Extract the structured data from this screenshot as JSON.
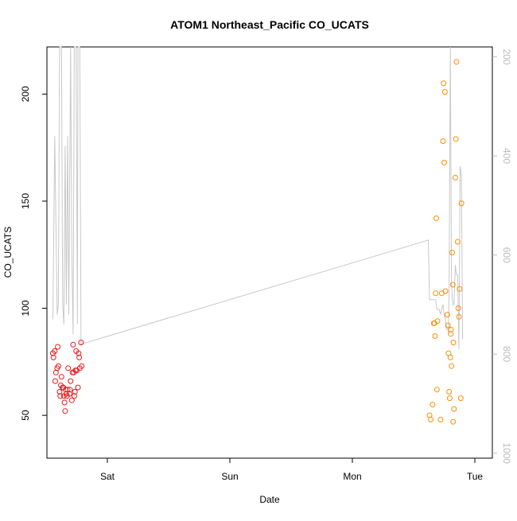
{
  "chart_data": {
    "type": "scatter",
    "title": "ATOM1 Northeast_Pacific CO_UCATS",
    "xlabel": "Date",
    "ylabel": "CO_UCATS",
    "ylim": [
      30,
      222
    ],
    "y2lim": [
      1010,
      180
    ],
    "x_ticks": [
      {
        "label": "Sat",
        "value": 1.0
      },
      {
        "label": "Sun",
        "value": 2.0
      },
      {
        "label": "Mon",
        "value": 3.0
      },
      {
        "label": "Tue",
        "value": 4.0
      }
    ],
    "y_ticks": [
      50,
      100,
      150,
      200
    ],
    "y2_ticks": [
      200,
      400,
      600,
      800,
      1000
    ],
    "grid": false,
    "colors": {
      "series_red": "#e41a1c",
      "series_orange": "#ff8c00",
      "altitude": "#c8c8c8",
      "axis": "#000000",
      "right_axis": "#bbbbbb"
    },
    "series": [
      {
        "values": [
          [
            0.555,
            79
          ],
          [
            0.56,
            77
          ],
          [
            0.57,
            80
          ],
          [
            0.575,
            66
          ],
          [
            0.58,
            70
          ],
          [
            0.59,
            72
          ],
          [
            0.595,
            82
          ],
          [
            0.6,
            73
          ],
          [
            0.61,
            61
          ],
          [
            0.615,
            59
          ],
          [
            0.62,
            64
          ],
          [
            0.625,
            68
          ],
          [
            0.635,
            63
          ],
          [
            0.64,
            63
          ],
          [
            0.645,
            59
          ],
          [
            0.65,
            56
          ],
          [
            0.655,
            52
          ],
          [
            0.66,
            62
          ],
          [
            0.665,
            60
          ],
          [
            0.67,
            59
          ],
          [
            0.675,
            62
          ],
          [
            0.68,
            72
          ],
          [
            0.69,
            60
          ],
          [
            0.695,
            62
          ],
          [
            0.7,
            66
          ],
          [
            0.71,
            57
          ],
          [
            0.715,
            70
          ],
          [
            0.72,
            83
          ],
          [
            0.725,
            70
          ],
          [
            0.73,
            59
          ],
          [
            0.735,
            61
          ],
          [
            0.74,
            71
          ],
          [
            0.745,
            80
          ],
          [
            0.75,
            71
          ],
          [
            0.76,
            63
          ],
          [
            0.765,
            79
          ],
          [
            0.77,
            77
          ],
          [
            0.775,
            72
          ],
          [
            0.785,
            84
          ],
          [
            0.79,
            73
          ]
        ]
      },
      {
        "values": [
          [
            3.63,
            50
          ],
          [
            3.64,
            48
          ],
          [
            3.655,
            55
          ],
          [
            3.665,
            93
          ],
          [
            3.67,
            93
          ],
          [
            3.675,
            87
          ],
          [
            3.68,
            107
          ],
          [
            3.685,
            142
          ],
          [
            3.69,
            62
          ],
          [
            3.695,
            94
          ],
          [
            3.72,
            48
          ],
          [
            3.73,
            107
          ],
          [
            3.74,
            178
          ],
          [
            3.745,
            205
          ],
          [
            3.75,
            168
          ],
          [
            3.755,
            201
          ],
          [
            3.76,
            108
          ],
          [
            3.775,
            97
          ],
          [
            3.78,
            92
          ],
          [
            3.785,
            79
          ],
          [
            3.79,
            61
          ],
          [
            3.795,
            58
          ],
          [
            3.8,
            77
          ],
          [
            3.803,
            88
          ],
          [
            3.805,
            90
          ],
          [
            3.81,
            73
          ],
          [
            3.815,
            126
          ],
          [
            3.82,
            111
          ],
          [
            3.823,
            47
          ],
          [
            3.825,
            84
          ],
          [
            3.83,
            53
          ],
          [
            3.84,
            161
          ],
          [
            3.845,
            179
          ],
          [
            3.85,
            215
          ],
          [
            3.86,
            131
          ],
          [
            3.865,
            100
          ],
          [
            3.87,
            96
          ],
          [
            3.875,
            109
          ],
          [
            3.885,
            58
          ],
          [
            3.89,
            149
          ]
        ]
      }
    ],
    "altitude_trace": [
      [
        0.555,
        730
      ],
      [
        0.57,
        360
      ],
      [
        0.59,
        720
      ],
      [
        0.6,
        700
      ],
      [
        0.61,
        180
      ],
      [
        0.62,
        180
      ],
      [
        0.625,
        180
      ],
      [
        0.635,
        700
      ],
      [
        0.645,
        740
      ],
      [
        0.655,
        380
      ],
      [
        0.665,
        700
      ],
      [
        0.675,
        360
      ],
      [
        0.685,
        720
      ],
      [
        0.7,
        180
      ],
      [
        0.71,
        600
      ],
      [
        0.72,
        760
      ],
      [
        0.73,
        180
      ],
      [
        0.745,
        180
      ],
      [
        0.755,
        740
      ],
      [
        0.76,
        180
      ],
      [
        0.775,
        180
      ],
      [
        0.785,
        780
      ],
      [
        3.62,
        570
      ],
      [
        3.63,
        690
      ],
      [
        3.68,
        690
      ],
      [
        3.69,
        710
      ],
      [
        3.71,
        710
      ],
      [
        3.72,
        720
      ],
      [
        3.73,
        710
      ],
      [
        3.74,
        700
      ],
      [
        3.75,
        720
      ],
      [
        3.76,
        730
      ],
      [
        3.77,
        750
      ],
      [
        3.78,
        750
      ],
      [
        3.785,
        760
      ],
      [
        3.79,
        650
      ],
      [
        3.8,
        180
      ],
      [
        3.81,
        660
      ],
      [
        3.82,
        700
      ],
      [
        3.83,
        700
      ],
      [
        3.84,
        620
      ],
      [
        3.85,
        640
      ],
      [
        3.86,
        640
      ],
      [
        3.87,
        790
      ],
      [
        3.88,
        420
      ],
      [
        3.89,
        440
      ],
      [
        3.9,
        770
      ]
    ]
  }
}
